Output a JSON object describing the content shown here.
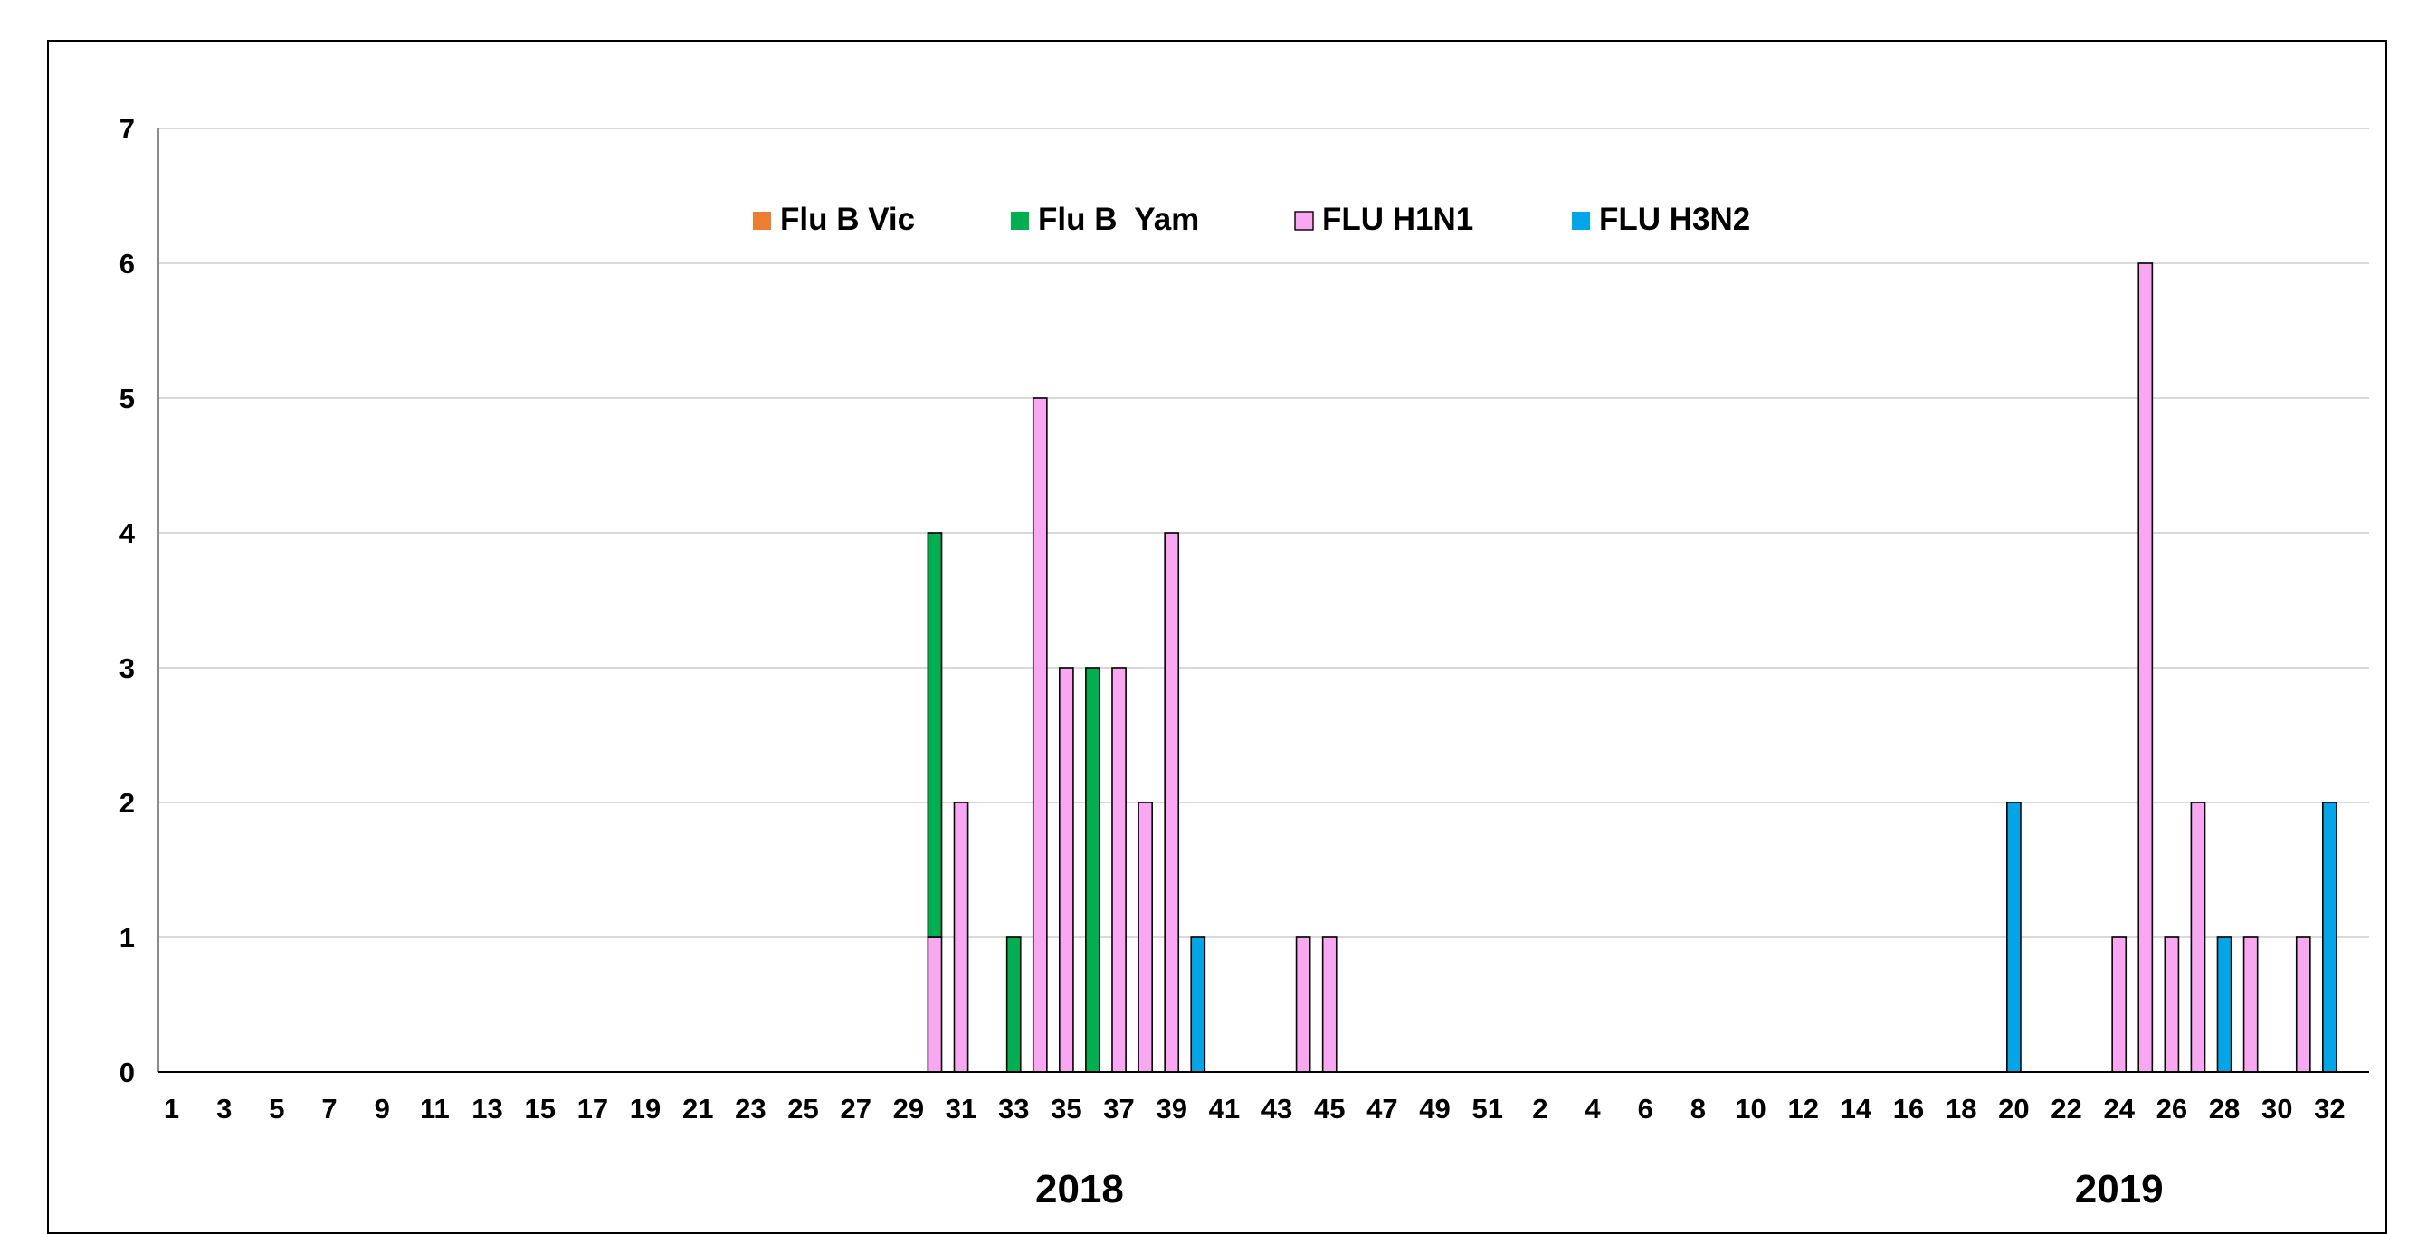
{
  "chart_data": {
    "type": "bar",
    "title": "",
    "xlabel": "",
    "ylabel": "",
    "ylim": [
      0,
      7
    ],
    "yticks": [
      "0",
      "1",
      "2",
      "3",
      "4",
      "5",
      "6",
      "7"
    ],
    "grid": true,
    "legend_position": "top-center",
    "categories": [
      "1",
      "2",
      "3",
      "4",
      "5",
      "6",
      "7",
      "8",
      "9",
      "10",
      "11",
      "12",
      "13",
      "14",
      "15",
      "16",
      "17",
      "18",
      "19",
      "20",
      "21",
      "22",
      "23",
      "24",
      "25",
      "26",
      "27",
      "28",
      "29",
      "30",
      "31",
      "32",
      "33",
      "34",
      "35",
      "36",
      "37",
      "38",
      "39",
      "40",
      "41",
      "42",
      "43",
      "44",
      "45",
      "46",
      "47",
      "48",
      "49",
      "50",
      "51",
      "52",
      "1",
      "2",
      "3",
      "4",
      "5",
      "6",
      "7",
      "8",
      "9",
      "10",
      "11",
      "12",
      "13",
      "14",
      "15",
      "16",
      "17",
      "18",
      "19",
      "20",
      "21",
      "22",
      "23",
      "24",
      "25",
      "26",
      "27",
      "28",
      "29",
      "30",
      "31",
      "32"
    ],
    "tick_labels": [
      "1",
      "3",
      "5",
      "7",
      "9",
      "11",
      "13",
      "15",
      "17",
      "19",
      "21",
      "23",
      "25",
      "27",
      "29",
      "31",
      "33",
      "35",
      "37",
      "39",
      "41",
      "43",
      "45",
      "47",
      "49",
      "51",
      "2",
      "4",
      "6",
      "8",
      "10",
      "12",
      "14",
      "16",
      "18",
      "20",
      "22",
      "24",
      "26",
      "28",
      "30",
      "32"
    ],
    "year_labels": [
      {
        "label": "2018",
        "center_category": 35.5
      },
      {
        "label": "2019",
        "center_category": 75
      }
    ],
    "series": [
      {
        "name": "Flu B Vic",
        "color": "#ED7D31",
        "stack_order": 2,
        "points": []
      },
      {
        "name": "Flu B  Yam",
        "color": "#00B050",
        "stack_order": 1,
        "points": [
          [
            30,
            3
          ],
          [
            33,
            1
          ],
          [
            36,
            3
          ]
        ]
      },
      {
        "name": "FLU H1N1",
        "color": "#F9A7F3",
        "stack_order": 0,
        "points": [
          [
            30,
            1
          ],
          [
            31,
            2
          ],
          [
            34,
            5
          ],
          [
            35,
            3
          ],
          [
            37,
            3
          ],
          [
            38,
            2
          ],
          [
            39,
            4
          ],
          [
            44,
            1
          ],
          [
            45,
            1
          ],
          [
            75,
            1
          ],
          [
            76,
            6
          ],
          [
            77,
            1
          ],
          [
            78,
            2
          ],
          [
            80,
            1
          ],
          [
            82,
            1
          ]
        ]
      },
      {
        "name": "FLU H3N2",
        "color": "#00A6E8",
        "stack_order": 3,
        "points": [
          [
            40,
            1
          ],
          [
            71,
            2
          ],
          [
            79,
            1
          ],
          [
            83,
            2
          ]
        ]
      }
    ]
  }
}
